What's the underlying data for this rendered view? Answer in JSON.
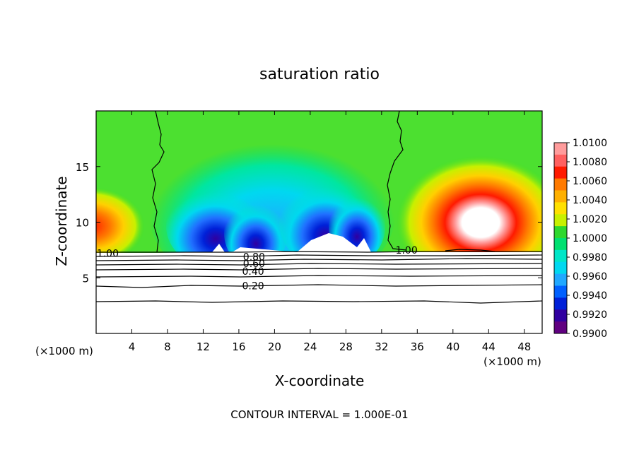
{
  "chart_data": {
    "type": "heatmap",
    "title": "saturation ratio",
    "xlabel": "X-coordinate",
    "ylabel": "Z-coordinate",
    "x_unit": "(×1000 m)",
    "footer": "CONTOUR INTERVAL = 1.000E-01",
    "xlim": [
      0,
      50
    ],
    "ylim": [
      0,
      20
    ],
    "x_ticks": [
      "4",
      "8",
      "12",
      "16",
      "20",
      "24",
      "28",
      "32",
      "36",
      "40",
      "44",
      "48"
    ],
    "x_tick_values": [
      4,
      8,
      12,
      16,
      20,
      24,
      28,
      32,
      36,
      40,
      44,
      48
    ],
    "y_ticks": [
      "5",
      "10",
      "15"
    ],
    "y_tick_values": [
      5,
      10,
      15
    ],
    "colorbar": {
      "labels": [
        "1.0100",
        "1.0080",
        "1.0060",
        "1.0040",
        "1.0020",
        "1.0000",
        "0.9980",
        "0.9960",
        "0.9940",
        "0.9920",
        "0.9900"
      ],
      "values": [
        1.01,
        1.008,
        1.006,
        1.004,
        1.002,
        1.0,
        0.998,
        0.996,
        0.994,
        0.992,
        0.99
      ],
      "colors": [
        "#ff9c9c",
        "#ff6060",
        "#ff1a00",
        "#ff7a00",
        "#ffb000",
        "#ffe000",
        "#c8f000",
        "#2ed82e",
        "#00e070",
        "#00e6c8",
        "#00d8f0",
        "#20a8ff",
        "#0060ff",
        "#0020d8",
        "#3000a0",
        "#600080"
      ]
    },
    "contour_labels": [
      {
        "text": "1.00",
        "x": 1.3,
        "z": 7.2
      },
      {
        "text": "1.00",
        "x": 34.8,
        "z": 7.5
      },
      {
        "text": "0.80",
        "x": 17.7,
        "z": 6.9
      },
      {
        "text": "0.60",
        "x": 17.7,
        "z": 6.3
      },
      {
        "text": "0.40",
        "x": 17.6,
        "z": 5.6
      },
      {
        "text": "0.20",
        "x": 17.6,
        "z": 4.3
      }
    ],
    "contour_levels": [
      1.0,
      0.8,
      0.6,
      0.4,
      0.2
    ]
  }
}
